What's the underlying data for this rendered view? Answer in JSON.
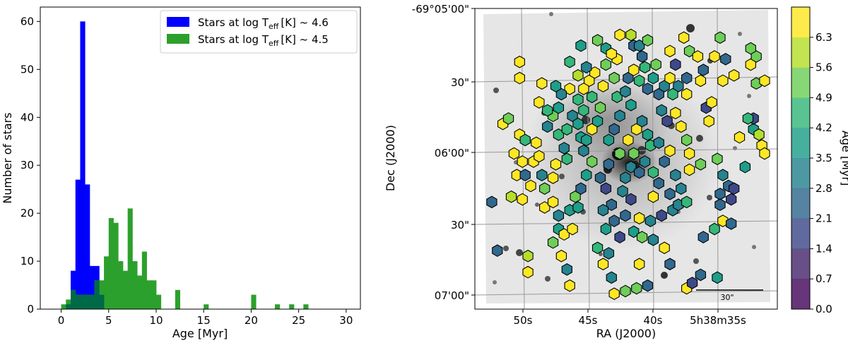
{
  "chart_data": [
    {
      "type": "histogram",
      "title": "",
      "xlabel": "Age [Myr]",
      "ylabel": "Number of stars",
      "xlim": [
        -2.2,
        31.5
      ],
      "ylim": [
        0,
        63
      ],
      "xticks": [
        "0",
        "5",
        "10",
        "15",
        "20",
        "25",
        "30"
      ],
      "yticks": [
        "0",
        "10",
        "20",
        "30",
        "40",
        "50",
        "60"
      ],
      "bin_width": 0.5,
      "legend_position": "top-right",
      "series": [
        {
          "name": "Stars at log Teff [K] ~ 4.6",
          "legend_main": "Stars at log T",
          "legend_sub": "eff",
          "legend_tail": "[K] ~ 4.6",
          "color": "#0000ff",
          "bin_edges": [
            0.5,
            1.0,
            1.5,
            2.0,
            2.5,
            3.0,
            3.5,
            4.0,
            4.5
          ],
          "counts": [
            1,
            8,
            27,
            60,
            26,
            9,
            9,
            3
          ]
        },
        {
          "name": "Stars at log Teff [K] ~ 4.5",
          "legend_main": "Stars at log T",
          "legend_sub": "eff",
          "legend_tail": "[K] ~ 4.5",
          "color": "#2ca02c",
          "bin_edges": [
            0.0,
            0.5,
            1.0,
            1.5,
            2.0,
            2.5,
            3.0,
            3.5,
            4.0,
            4.5,
            5.0,
            5.5,
            6.0,
            6.5,
            7.0,
            7.5,
            8.0,
            8.5,
            9.0,
            9.5,
            10.0,
            10.5
          ],
          "counts": [
            1,
            2,
            4,
            3,
            3,
            3,
            3,
            6,
            6,
            11,
            19,
            18,
            10,
            8,
            21,
            10,
            7,
            12,
            6,
            6,
            3
          ],
          "extra_bins": [
            {
              "x0": 12.0,
              "x1": 12.5,
              "count": 4
            },
            {
              "x0": 15.0,
              "x1": 15.5,
              "count": 1
            },
            {
              "x0": 20.0,
              "x1": 20.5,
              "count": 3
            },
            {
              "x0": 22.5,
              "x1": 23.0,
              "count": 1
            },
            {
              "x0": 24.0,
              "x1": 24.5,
              "count": 1
            },
            {
              "x0": 25.5,
              "x1": 26.0,
              "count": 1
            }
          ]
        }
      ],
      "overlap_color": "#006a48"
    },
    {
      "type": "scatter",
      "title": "",
      "xlabel": "RA (J2000)",
      "ylabel": "Dec (J2000)",
      "xticks": [
        "50s",
        "45s",
        "40s",
        "5h38m35s"
      ],
      "yticks": [
        "-69°05'00\"",
        "30\"",
        "06'00\"",
        "30\"",
        "07'00\""
      ],
      "scalebar_label": "30\"",
      "marker": "hexagon",
      "colorbar": {
        "label": "Age [Myr]",
        "ticks": [
          "0.0",
          "0.7",
          "1.4",
          "2.1",
          "2.8",
          "3.5",
          "4.2",
          "4.9",
          "5.6",
          "6.3"
        ],
        "range": [
          0.0,
          6.3
        ],
        "colors": [
          "#46085c",
          "#47286e",
          "#3e4989",
          "#31688e",
          "#26838f",
          "#1f9e89",
          "#35b779",
          "#6ece58",
          "#b5de2b",
          "#fde725"
        ]
      },
      "x_units": "fraction of field width, 0 = east/left edge, 1 = west/right edge",
      "y_units": "fraction of field height, 0 = north/top edge, 1 = south/bottom edge",
      "points": [
        [
          0.06,
          0.36,
          6.3
        ],
        [
          0.08,
          0.34,
          4.9
        ],
        [
          0.12,
          0.4,
          6.3
        ],
        [
          0.14,
          0.42,
          4.2
        ],
        [
          0.1,
          0.47,
          6.3
        ],
        [
          0.13,
          0.5,
          6.3
        ],
        [
          0.11,
          0.55,
          6.3
        ],
        [
          0.14,
          0.55,
          2.1
        ],
        [
          0.17,
          0.5,
          6.3
        ],
        [
          0.02,
          0.65,
          2.1
        ],
        [
          0.09,
          0.63,
          5.6
        ],
        [
          0.13,
          0.64,
          6.3
        ],
        [
          0.04,
          0.83,
          2.1
        ],
        [
          0.15,
          0.85,
          5.6
        ],
        [
          0.15,
          0.91,
          6.3
        ],
        [
          0.18,
          0.43,
          6.3
        ],
        [
          0.19,
          0.48,
          6.3
        ],
        [
          0.2,
          0.55,
          2.8
        ],
        [
          0.21,
          0.6,
          4.9
        ],
        [
          0.21,
          0.67,
          6.3
        ],
        [
          0.16,
          0.59,
          6.3
        ],
        [
          0.22,
          0.37,
          2.8
        ],
        [
          0.24,
          0.33,
          4.9
        ],
        [
          0.26,
          0.3,
          3.5
        ],
        [
          0.26,
          0.4,
          4.2
        ],
        [
          0.28,
          0.45,
          2.8
        ],
        [
          0.29,
          0.49,
          4.2
        ],
        [
          0.25,
          0.51,
          6.3
        ],
        [
          0.24,
          0.56,
          6.3
        ],
        [
          0.24,
          0.65,
          6.3
        ],
        [
          0.26,
          0.7,
          2.8
        ],
        [
          0.26,
          0.75,
          3.5
        ],
        [
          0.28,
          0.77,
          6.3
        ],
        [
          0.3,
          0.68,
          3.5
        ],
        [
          0.31,
          0.75,
          6.3
        ],
        [
          0.24,
          0.8,
          4.9
        ],
        [
          0.27,
          0.85,
          6.3
        ],
        [
          0.29,
          0.9,
          2.8
        ],
        [
          0.3,
          0.96,
          6.3
        ],
        [
          0.32,
          0.63,
          4.9
        ],
        [
          0.33,
          0.67,
          3.5
        ],
        [
          0.34,
          0.6,
          2.1
        ],
        [
          0.36,
          0.55,
          3.5
        ],
        [
          0.31,
          0.33,
          2.8
        ],
        [
          0.33,
          0.36,
          3.5
        ],
        [
          0.29,
          0.38,
          4.2
        ],
        [
          0.34,
          0.41,
          3.5
        ],
        [
          0.35,
          0.46,
          2.8
        ],
        [
          0.38,
          0.5,
          4.9
        ],
        [
          0.36,
          0.42,
          3.5
        ],
        [
          0.38,
          0.38,
          6.3
        ],
        [
          0.4,
          0.35,
          3.5
        ],
        [
          0.41,
          0.3,
          4.9
        ],
        [
          0.38,
          0.26,
          4.2
        ],
        [
          0.37,
          0.2,
          6.3
        ],
        [
          0.39,
          0.17,
          6.3
        ],
        [
          0.42,
          0.22,
          6.3
        ],
        [
          0.43,
          0.14,
          4.9
        ],
        [
          0.43,
          0.08,
          3.5
        ],
        [
          0.34,
          0.07,
          3.5
        ],
        [
          0.3,
          0.13,
          4.2
        ],
        [
          0.33,
          0.18,
          5.6
        ],
        [
          0.35,
          0.23,
          6.3
        ],
        [
          0.46,
          0.19,
          4.9
        ],
        [
          0.47,
          0.26,
          4.2
        ],
        [
          0.48,
          0.33,
          2.8
        ],
        [
          0.46,
          0.38,
          2.1
        ],
        [
          0.44,
          0.42,
          3.5
        ],
        [
          0.48,
          0.47,
          4.9
        ],
        [
          0.44,
          0.51,
          2.1
        ],
        [
          0.41,
          0.56,
          2.1
        ],
        [
          0.43,
          0.6,
          1.4
        ],
        [
          0.45,
          0.66,
          2.1
        ],
        [
          0.42,
          0.68,
          2.8
        ],
        [
          0.46,
          0.72,
          2.1
        ],
        [
          0.43,
          0.75,
          3.5
        ],
        [
          0.4,
          0.82,
          4.2
        ],
        [
          0.44,
          0.84,
          2.8
        ],
        [
          0.42,
          0.88,
          6.3
        ],
        [
          0.45,
          0.93,
          2.8
        ],
        [
          0.48,
          0.78,
          1.4
        ],
        [
          0.5,
          0.7,
          2.1
        ],
        [
          0.49,
          0.61,
          2.8
        ],
        [
          0.52,
          0.64,
          1.4
        ],
        [
          0.5,
          0.56,
          2.8
        ],
        [
          0.52,
          0.52,
          2.8
        ],
        [
          0.55,
          0.54,
          2.1
        ],
        [
          0.57,
          0.5,
          2.8
        ],
        [
          0.53,
          0.47,
          4.9
        ],
        [
          0.51,
          0.42,
          6.3
        ],
        [
          0.54,
          0.38,
          6.3
        ],
        [
          0.56,
          0.35,
          2.8
        ],
        [
          0.58,
          0.4,
          3.5
        ],
        [
          0.59,
          0.44,
          4.2
        ],
        [
          0.52,
          0.29,
          3.5
        ],
        [
          0.5,
          0.24,
          2.8
        ],
        [
          0.51,
          0.19,
          2.1
        ],
        [
          0.53,
          0.16,
          6.3
        ],
        [
          0.55,
          0.2,
          4.2
        ],
        [
          0.57,
          0.15,
          4.2
        ],
        [
          0.58,
          0.23,
          2.1
        ],
        [
          0.6,
          0.19,
          3.5
        ],
        [
          0.61,
          0.14,
          4.9
        ],
        [
          0.62,
          0.25,
          2.1
        ],
        [
          0.64,
          0.22,
          2.8
        ],
        [
          0.66,
          0.19,
          6.3
        ],
        [
          0.48,
          0.03,
          6.3
        ],
        [
          0.53,
          0.07,
          2.1
        ],
        [
          0.52,
          0.03,
          5.6
        ],
        [
          0.55,
          0.07,
          2.8
        ],
        [
          0.58,
          0.05,
          4.9
        ],
        [
          0.56,
          0.11,
          2.1
        ],
        [
          0.66,
          0.09,
          6.3
        ],
        [
          0.71,
          0.04,
          6.3
        ],
        [
          0.68,
          0.14,
          1.4
        ],
        [
          0.72,
          0.19,
          2.1
        ],
        [
          0.72,
          0.25,
          6.3
        ],
        [
          0.63,
          0.31,
          2.8
        ],
        [
          0.65,
          0.35,
          1.4
        ],
        [
          0.68,
          0.32,
          6.3
        ],
        [
          0.7,
          0.37,
          6.3
        ],
        [
          0.62,
          0.43,
          2.8
        ],
        [
          0.66,
          0.46,
          6.3
        ],
        [
          0.64,
          0.5,
          2.1
        ],
        [
          0.6,
          0.54,
          4.2
        ],
        [
          0.62,
          0.58,
          2.1
        ],
        [
          0.6,
          0.63,
          6.3
        ],
        [
          0.66,
          0.62,
          2.1
        ],
        [
          0.67,
          0.68,
          2.8
        ],
        [
          0.63,
          0.7,
          1.4
        ],
        [
          0.59,
          0.72,
          2.8
        ],
        [
          0.55,
          0.71,
          6.3
        ],
        [
          0.53,
          0.76,
          3.5
        ],
        [
          0.56,
          0.78,
          4.9
        ],
        [
          0.6,
          0.79,
          2.8
        ],
        [
          0.64,
          0.82,
          6.3
        ],
        [
          0.66,
          0.88,
          2.1
        ],
        [
          0.55,
          0.88,
          6.3
        ],
        [
          0.58,
          0.96,
          2.1
        ],
        [
          0.5,
          0.98,
          4.9
        ],
        [
          0.54,
          0.97,
          4.9
        ],
        [
          0.46,
          0.99,
          6.3
        ],
        [
          0.73,
          0.09,
          4.9
        ],
        [
          0.78,
          0.16,
          2.1
        ],
        [
          0.76,
          0.11,
          6.3
        ],
        [
          0.77,
          0.2,
          6.3
        ],
        [
          0.79,
          0.3,
          1.4
        ],
        [
          0.81,
          0.28,
          6.3
        ],
        [
          0.8,
          0.35,
          6.3
        ],
        [
          0.72,
          0.42,
          4.9
        ],
        [
          0.73,
          0.47,
          6.3
        ],
        [
          0.73,
          0.53,
          6.3
        ],
        [
          0.68,
          0.55,
          2.8
        ],
        [
          0.7,
          0.6,
          2.8
        ],
        [
          0.69,
          0.66,
          2.8
        ],
        [
          0.72,
          0.65,
          4.2
        ],
        [
          0.77,
          0.51,
          4.9
        ],
        [
          0.83,
          0.49,
          4.9
        ],
        [
          0.85,
          0.55,
          2.8
        ],
        [
          0.87,
          0.59,
          2.1
        ],
        [
          0.84,
          0.62,
          2.1
        ],
        [
          0.88,
          0.64,
          1.4
        ],
        [
          0.84,
          0.66,
          2.1
        ],
        [
          0.82,
          0.75,
          4.2
        ],
        [
          0.78,
          0.78,
          2.1
        ],
        [
          0.85,
          0.72,
          6.3
        ],
        [
          0.89,
          0.6,
          1.4
        ],
        [
          0.93,
          0.52,
          3.5
        ],
        [
          0.88,
          0.73,
          2.1
        ],
        [
          0.83,
          0.93,
          3.5
        ],
        [
          0.77,
          0.92,
          2.1
        ],
        [
          0.72,
          0.97,
          6.3
        ],
        [
          0.74,
          0.95,
          1.4
        ],
        [
          0.96,
          0.38,
          3.5
        ],
        [
          0.98,
          0.4,
          5.6
        ],
        [
          0.99,
          0.44,
          6.3
        ],
        [
          1.0,
          0.47,
          6.3
        ],
        [
          0.96,
          0.34,
          1.4
        ],
        [
          0.94,
          0.34,
          4.2
        ],
        [
          0.91,
          0.41,
          6.3
        ],
        [
          0.95,
          0.14,
          6.3
        ],
        [
          0.97,
          0.21,
          4.9
        ],
        [
          1.0,
          0.2,
          6.3
        ],
        [
          0.97,
          0.11,
          4.9
        ],
        [
          0.95,
          0.08,
          4.9
        ],
        [
          0.84,
          0.04,
          4.9
        ],
        [
          0.86,
          0.12,
          2.1
        ],
        [
          0.85,
          0.2,
          6.3
        ],
        [
          0.89,
          0.18,
          6.3
        ],
        [
          0.82,
          0.11,
          6.3
        ],
        [
          0.69,
          0.22,
          2.8
        ],
        [
          0.67,
          0.25,
          4.2
        ],
        [
          0.47,
          0.12,
          6.3
        ],
        [
          0.45,
          0.1,
          6.3
        ],
        [
          0.4,
          0.05,
          4.9
        ],
        [
          0.36,
          0.15,
          2.8
        ],
        [
          0.33,
          0.27,
          4.2
        ],
        [
          0.35,
          0.31,
          4.2
        ],
        [
          0.3,
          0.23,
          6.3
        ],
        [
          0.27,
          0.25,
          2.8
        ],
        [
          0.22,
          0.31,
          4.2
        ],
        [
          0.25,
          0.22,
          3.5
        ],
        [
          0.19,
          0.28,
          6.3
        ],
        [
          0.2,
          0.21,
          6.3
        ],
        [
          0.12,
          0.13,
          6.3
        ],
        [
          0.12,
          0.19,
          6.3
        ]
      ]
    }
  ]
}
